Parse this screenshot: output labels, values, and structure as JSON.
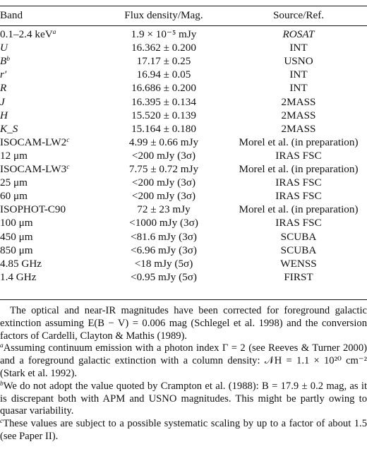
{
  "headers": {
    "band": "Band",
    "flux": "Flux density/Mag.",
    "source": "Source/Ref."
  },
  "rows": [
    {
      "band": "0.1–2.4 keV",
      "band_sup": "a",
      "flux": "1.9 × 10⁻⁵ mJy",
      "source": "ROSAT",
      "source_italic": true
    },
    {
      "band": "U",
      "band_italic": true,
      "flux": "16.362 ± 0.200",
      "source": "INT"
    },
    {
      "band": "B",
      "band_italic": true,
      "band_sup": "b",
      "flux": "17.17 ± 0.25",
      "source": "USNO"
    },
    {
      "band": "r′",
      "band_italic": true,
      "flux": "16.94 ± 0.05",
      "source": "INT"
    },
    {
      "band": "R",
      "band_italic": true,
      "flux": "16.686 ± 0.200",
      "source": "INT"
    },
    {
      "band": "J",
      "band_italic": true,
      "flux": "16.395 ± 0.134",
      "source": "2MASS"
    },
    {
      "band": "H",
      "band_italic": true,
      "flux": "15.520 ± 0.139",
      "source": "2MASS"
    },
    {
      "band": "K_S",
      "band_italic": true,
      "flux": "15.164 ± 0.180",
      "source": "2MASS"
    },
    {
      "band": "ISOCAM-LW2",
      "band_sup": "c",
      "flux": "4.99 ± 0.66 mJy",
      "source": "Morel et al. (in preparation)"
    },
    {
      "band": "12 μm",
      "flux": "<200 mJy (3σ)",
      "source": "IRAS FSC"
    },
    {
      "band": "ISOCAM-LW3",
      "band_sup": "c",
      "flux": "7.75 ± 0.72 mJy",
      "source": "Morel et al. (in preparation)"
    },
    {
      "band": "25 μm",
      "flux": "<200 mJy (3σ)",
      "source": "IRAS FSC"
    },
    {
      "band": "60 μm",
      "flux": "<200 mJy (3σ)",
      "source": "IRAS FSC"
    },
    {
      "band": "ISOPHOT-C90",
      "flux": "72 ± 23 mJy",
      "source": "Morel et al. (in preparation)"
    },
    {
      "band": "100 μm",
      "flux": "<1000 mJy (3σ)",
      "source": "IRAS FSC"
    },
    {
      "band": "450 μm",
      "flux": "<81.6 mJy (3σ)",
      "source": "SCUBA"
    },
    {
      "band": "850 μm",
      "flux": "<6.96 mJy (3σ)",
      "source": "SCUBA"
    },
    {
      "band": "4.85 GHz",
      "flux": "<18 mJy (5σ)",
      "source": "WENSS"
    },
    {
      "band": "1.4 GHz",
      "flux": "<0.95 mJy (5σ)",
      "source": "FIRST"
    }
  ],
  "notes": {
    "general": "The optical and near-IR magnitudes have been corrected for foreground galactic extinction assuming E(B − V) = 0.006 mag (Schlegel et al. 1998) and the conversion factors of Cardelli, Clayton & Mathis (1989).",
    "a": "Assuming continuum emission with a photon index Γ = 2 (see Reeves & Turner 2000) and a foreground galactic extinction with a column density: 𝒩H = 1.1 × 10²⁰ cm⁻² (Stark et al. 1992).",
    "b": "We do not adopt the value quoted by Crampton et al. (1988): B = 17.9 ± 0.2 mag, as it is discrepant both with APM and USNO magnitudes. This might be partly owing to quasar variability.",
    "c": "These values are subject to a possible systematic scaling by up to a factor of about 1.5 (see Paper II)."
  }
}
